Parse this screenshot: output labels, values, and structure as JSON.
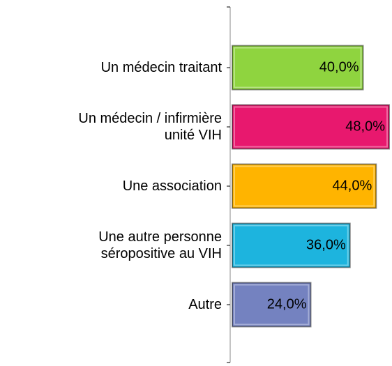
{
  "chart_data": {
    "type": "barh",
    "categories": [
      "Un médecin traitant",
      "Un médecin / infirmière\nunité VIH",
      "Une association",
      "Une autre personne\nséropositive au VIH",
      "Autre"
    ],
    "values": [
      40,
      48,
      44,
      36,
      24
    ],
    "value_labels": [
      "40,0%",
      "48,0%",
      "44,0%",
      "36,0%",
      "24,0%"
    ],
    "colors": [
      "#8fd43f",
      "#e8186e",
      "#ffb400",
      "#1db4de",
      "#7482c0"
    ],
    "xlim": [
      0,
      48
    ]
  }
}
